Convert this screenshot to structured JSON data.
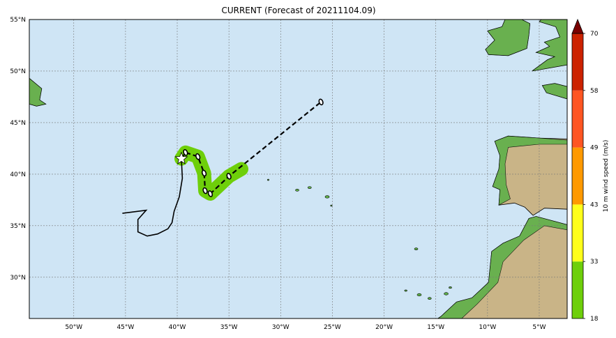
{
  "title": "CURRENT (Forecast of 20211104.09)",
  "map": {
    "lon_range": [
      -54.3,
      -2.3
    ],
    "lat_range": [
      26.0,
      55.0
    ],
    "lon_ticks": [
      "50°W",
      "45°W",
      "40°W",
      "35°W",
      "30°W",
      "25°W",
      "20°W",
      "15°W",
      "10°W",
      "5°W"
    ],
    "lat_ticks": [
      "55°N",
      "50°N",
      "45°N",
      "40°N",
      "35°N",
      "30°N"
    ],
    "ocean_color": "#cfe5f5",
    "storm_marker": "star-icon"
  },
  "colorbar": {
    "label": "10 m wind speed (m/s)",
    "ticks": [
      "18",
      "33",
      "43",
      "49",
      "58",
      "70"
    ],
    "colors": [
      "#6ecf0a",
      "#ffff1a",
      "#ff9900",
      "#ff5522",
      "#cc2200",
      "#7a0000"
    ]
  },
  "track": {
    "past": [
      [
        -45.3,
        36.2
      ],
      [
        -43.0,
        36.5
      ],
      [
        -43.8,
        35.6
      ],
      [
        -43.8,
        34.4
      ],
      [
        -42.9,
        34.0
      ],
      [
        -41.9,
        34.2
      ],
      [
        -40.9,
        34.7
      ],
      [
        -40.5,
        35.3
      ],
      [
        -40.3,
        36.4
      ],
      [
        -39.8,
        37.8
      ],
      [
        -39.5,
        39.6
      ],
      [
        -39.6,
        41.5
      ]
    ],
    "forecast": [
      [
        -39.6,
        41.5
      ],
      [
        -39.2,
        42.1
      ],
      [
        -38.0,
        41.7
      ],
      [
        -37.4,
        40.1
      ],
      [
        -37.3,
        38.4
      ],
      [
        -36.8,
        38.1
      ],
      [
        -35.0,
        39.8
      ],
      [
        -26.1,
        47.0
      ]
    ],
    "forecast_points": [
      [
        -39.2,
        42.1
      ],
      [
        -38.0,
        41.7
      ],
      [
        -37.4,
        40.1
      ],
      [
        -37.3,
        38.4
      ],
      [
        -36.8,
        38.1
      ],
      [
        -35.0,
        39.8
      ],
      [
        -26.1,
        47.0
      ]
    ],
    "wind_swath_color": "#6ecf0a"
  }
}
